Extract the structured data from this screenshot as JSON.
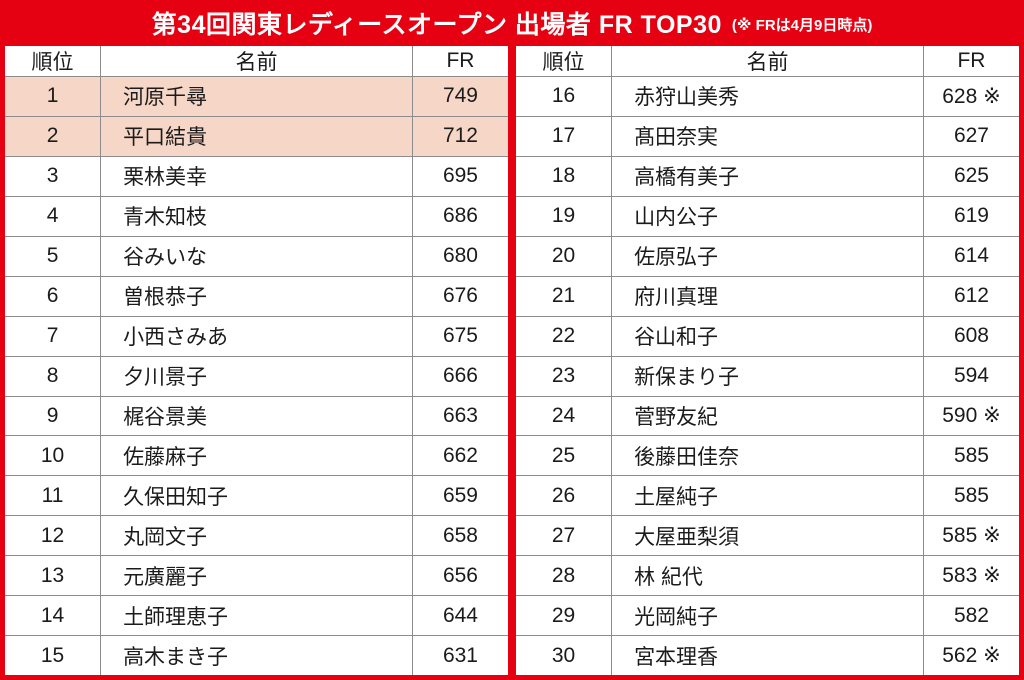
{
  "header": {
    "title": "第34回関東レディースオープン 出場者 FR TOP30",
    "note": "(※ FRは4月9日時点)"
  },
  "columns": {
    "rank": "順位",
    "name": "名前",
    "fr": "FR"
  },
  "note_mark": "※",
  "colors": {
    "accent_red": "#e50012",
    "highlight_peach": "#f6d6c6",
    "grid_gray": "#8c8c8c"
  },
  "tables": [
    {
      "rows": [
        {
          "rank": "1",
          "name": "河原千尋",
          "fr": "749",
          "mark": "",
          "highlight": true
        },
        {
          "rank": "2",
          "name": "平口結貴",
          "fr": "712",
          "mark": "",
          "highlight": true
        },
        {
          "rank": "3",
          "name": "栗林美幸",
          "fr": "695",
          "mark": "",
          "highlight": false
        },
        {
          "rank": "4",
          "name": "青木知枝",
          "fr": "686",
          "mark": "",
          "highlight": false
        },
        {
          "rank": "5",
          "name": "谷みいな",
          "fr": "680",
          "mark": "",
          "highlight": false
        },
        {
          "rank": "6",
          "name": "曽根恭子",
          "fr": "676",
          "mark": "",
          "highlight": false
        },
        {
          "rank": "7",
          "name": "小西さみあ",
          "fr": "675",
          "mark": "",
          "highlight": false
        },
        {
          "rank": "8",
          "name": "夕川景子",
          "fr": "666",
          "mark": "",
          "highlight": false
        },
        {
          "rank": "9",
          "name": "梶谷景美",
          "fr": "663",
          "mark": "",
          "highlight": false
        },
        {
          "rank": "10",
          "name": "佐藤麻子",
          "fr": "662",
          "mark": "",
          "highlight": false
        },
        {
          "rank": "11",
          "name": "久保田知子",
          "fr": "659",
          "mark": "",
          "highlight": false
        },
        {
          "rank": "12",
          "name": "丸岡文子",
          "fr": "658",
          "mark": "",
          "highlight": false
        },
        {
          "rank": "13",
          "name": "元廣麗子",
          "fr": "656",
          "mark": "",
          "highlight": false
        },
        {
          "rank": "14",
          "name": "土師理恵子",
          "fr": "644",
          "mark": "",
          "highlight": false
        },
        {
          "rank": "15",
          "name": "高木まき子",
          "fr": "631",
          "mark": "",
          "highlight": false
        }
      ]
    },
    {
      "rows": [
        {
          "rank": "16",
          "name": "赤狩山美秀",
          "fr": "628",
          "mark": "※",
          "highlight": false
        },
        {
          "rank": "17",
          "name": "髙田奈実",
          "fr": "627",
          "mark": "",
          "highlight": false
        },
        {
          "rank": "18",
          "name": "高橋有美子",
          "fr": "625",
          "mark": "",
          "highlight": false
        },
        {
          "rank": "19",
          "name": "山内公子",
          "fr": "619",
          "mark": "",
          "highlight": false
        },
        {
          "rank": "20",
          "name": "佐原弘子",
          "fr": "614",
          "mark": "",
          "highlight": false
        },
        {
          "rank": "21",
          "name": "府川真理",
          "fr": "612",
          "mark": "",
          "highlight": false
        },
        {
          "rank": "22",
          "name": "谷山和子",
          "fr": "608",
          "mark": "",
          "highlight": false
        },
        {
          "rank": "23",
          "name": "新保まり子",
          "fr": "594",
          "mark": "",
          "highlight": false
        },
        {
          "rank": "24",
          "name": "菅野友紀",
          "fr": "590",
          "mark": "※",
          "highlight": false
        },
        {
          "rank": "25",
          "name": "後藤田佳奈",
          "fr": "585",
          "mark": "",
          "highlight": false
        },
        {
          "rank": "26",
          "name": "土屋純子",
          "fr": "585",
          "mark": "",
          "highlight": false
        },
        {
          "rank": "27",
          "name": "大屋亜梨須",
          "fr": "585",
          "mark": "※",
          "highlight": false
        },
        {
          "rank": "28",
          "name": "林 紀代",
          "fr": "583",
          "mark": "※",
          "highlight": false
        },
        {
          "rank": "29",
          "name": "光岡純子",
          "fr": "582",
          "mark": "",
          "highlight": false
        },
        {
          "rank": "30",
          "name": "宮本理香",
          "fr": "562",
          "mark": "※",
          "highlight": false
        }
      ]
    }
  ]
}
